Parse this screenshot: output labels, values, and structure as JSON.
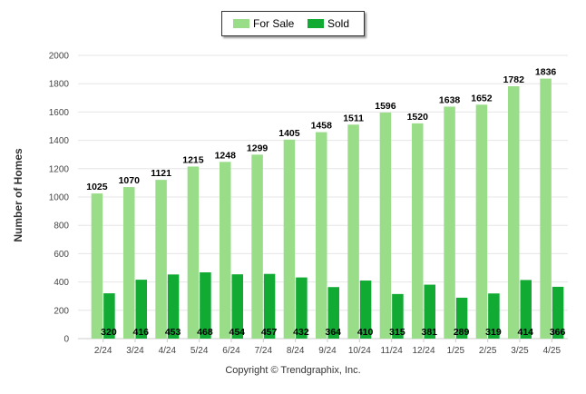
{
  "chart_data": {
    "type": "bar",
    "categories": [
      "2/24",
      "3/24",
      "4/24",
      "5/24",
      "6/24",
      "7/24",
      "8/24",
      "9/24",
      "10/24",
      "11/24",
      "12/24",
      "1/25",
      "2/25",
      "3/25",
      "4/25"
    ],
    "series": [
      {
        "name": "For Sale",
        "color": "#99dd88",
        "values": [
          1025,
          1070,
          1121,
          1215,
          1248,
          1299,
          1405,
          1458,
          1511,
          1596,
          1520,
          1638,
          1652,
          1782,
          1836
        ]
      },
      {
        "name": "Sold",
        "color": "#11aa33",
        "values": [
          320,
          416,
          453,
          468,
          454,
          457,
          432,
          364,
          410,
          315,
          381,
          289,
          319,
          414,
          366
        ]
      }
    ],
    "ylabel": "Number of Homes",
    "ylim": [
      0,
      2000
    ],
    "yticks": [
      0,
      200,
      400,
      600,
      800,
      1000,
      1200,
      1400,
      1600,
      1800,
      2000
    ],
    "grid": true,
    "legend": "top-center"
  },
  "footer": {
    "copyright": "Copyright © Trendgraphix, Inc."
  }
}
